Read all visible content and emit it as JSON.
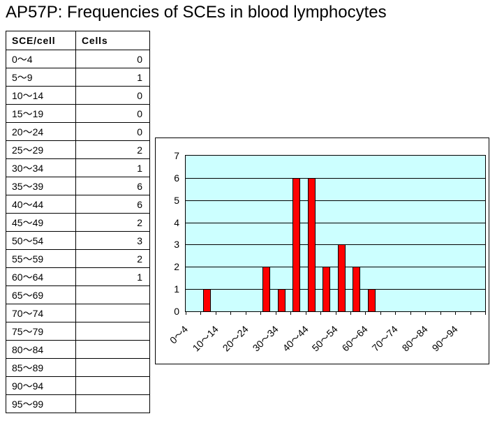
{
  "title": "AP57P: Frequencies of SCEs in blood lymphocytes",
  "table": {
    "headers": [
      "SCE/cell",
      "Cells"
    ],
    "rows": [
      {
        "range": "0～4",
        "count": "0"
      },
      {
        "range": "5～9",
        "count": "1"
      },
      {
        "range": "10～14",
        "count": "0"
      },
      {
        "range": "15～19",
        "count": "0"
      },
      {
        "range": "20～24",
        "count": "0"
      },
      {
        "range": "25～29",
        "count": "2"
      },
      {
        "range": "30～34",
        "count": "1"
      },
      {
        "range": "35～39",
        "count": "6"
      },
      {
        "range": "40～44",
        "count": "6"
      },
      {
        "range": "45～49",
        "count": "2"
      },
      {
        "range": "50～54",
        "count": "3"
      },
      {
        "range": "55～59",
        "count": "2"
      },
      {
        "range": "60～64",
        "count": "1"
      },
      {
        "range": "65～69",
        "count": ""
      },
      {
        "range": "70～74",
        "count": ""
      },
      {
        "range": "75～79",
        "count": ""
      },
      {
        "range": "80～84",
        "count": ""
      },
      {
        "range": "85～89",
        "count": ""
      },
      {
        "range": "90～94",
        "count": ""
      },
      {
        "range": "95～99",
        "count": ""
      }
    ]
  },
  "chart_data": {
    "type": "bar",
    "categories": [
      "0～4",
      "5～9",
      "10～14",
      "15～19",
      "20～24",
      "25～29",
      "30～34",
      "35～39",
      "40～44",
      "45～49",
      "50～54",
      "55～59",
      "60～64",
      "65～69",
      "70～74",
      "75～79",
      "80～84",
      "85～89",
      "90～94",
      "95～99"
    ],
    "values": [
      0,
      1,
      0,
      0,
      0,
      2,
      1,
      6,
      6,
      2,
      3,
      2,
      1,
      0,
      0,
      0,
      0,
      0,
      0,
      0
    ],
    "title": "",
    "xlabel": "",
    "ylabel": "",
    "ylim": [
      0,
      7
    ],
    "yticks": [
      0,
      1,
      2,
      3,
      4,
      5,
      6,
      7
    ],
    "label_every": 2,
    "grid": true,
    "legend": false,
    "bar_color": "#ff0000",
    "bar_border_color": "#000000",
    "plot_bg_color": "#ccffff"
  }
}
